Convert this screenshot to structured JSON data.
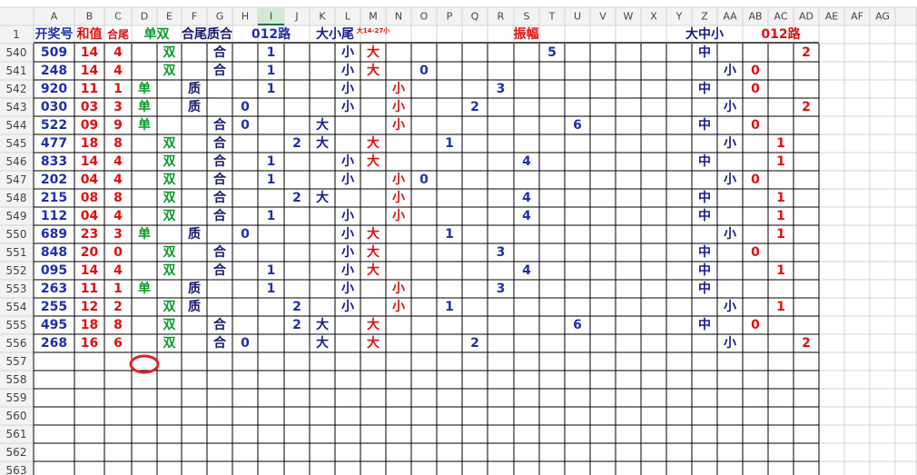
{
  "sheet": {
    "columns": [
      "A",
      "B",
      "C",
      "D",
      "E",
      "F",
      "G",
      "H",
      "I",
      "J",
      "K",
      "L",
      "M",
      "N",
      "O",
      "P",
      "Q",
      "R",
      "S",
      "T",
      "U",
      "V",
      "W",
      "X",
      "Y",
      "Z",
      "AA",
      "AB",
      "AC",
      "AD",
      "AE",
      "AF",
      "AG"
    ],
    "header_row": {
      "row": "1",
      "cells": {
        "A": "开奖号",
        "B": "和值",
        "C": "合尾",
        "D": "单双",
        "F": "合尾质合",
        "H": "012路",
        "K": "大小尾",
        "M": "大14-27小",
        "N": "振幅",
        "Y": "大中小",
        "AB": "012路"
      }
    },
    "rows": [
      {
        "row": "540",
        "cells": {
          "A": "509",
          "B": "14",
          "C": "4",
          "E": "双",
          "G": "合",
          "I": "1",
          "L": "小",
          "M": "大",
          "T": "5",
          "Z": "中",
          "AD": "2"
        }
      },
      {
        "row": "541",
        "cells": {
          "A": "248",
          "B": "14",
          "C": "4",
          "E": "双",
          "G": "合",
          "I": "1",
          "L": "小",
          "M": "大",
          "O": "0",
          "AA": "小",
          "AB": "0"
        }
      },
      {
        "row": "542",
        "cells": {
          "A": "920",
          "B": "11",
          "C": "1",
          "D": "单",
          "F": "质",
          "I": "1",
          "L": "小",
          "N": "小",
          "R": "3",
          "Z": "中",
          "AB": "0"
        }
      },
      {
        "row": "543",
        "cells": {
          "A": "030",
          "B": "03",
          "C": "3",
          "D": "单",
          "F": "质",
          "H": "0",
          "L": "小",
          "N": "小",
          "Q": "2",
          "AA": "小",
          "AD": "2"
        }
      },
      {
        "row": "544",
        "cells": {
          "A": "522",
          "B": "09",
          "C": "9",
          "D": "单",
          "G": "合",
          "H": "0",
          "K": "大",
          "N": "小",
          "U": "6",
          "Z": "中",
          "AB": "0"
        }
      },
      {
        "row": "545",
        "cells": {
          "A": "477",
          "B": "18",
          "C": "8",
          "E": "双",
          "G": "合",
          "J": "2",
          "K": "大",
          "M": "大",
          "P": "1",
          "AA": "小",
          "AC": "1"
        }
      },
      {
        "row": "546",
        "cells": {
          "A": "833",
          "B": "14",
          "C": "4",
          "E": "双",
          "G": "合",
          "I": "1",
          "L": "小",
          "M": "大",
          "S": "4",
          "Z": "中",
          "AC": "1"
        }
      },
      {
        "row": "547",
        "cells": {
          "A": "202",
          "B": "04",
          "C": "4",
          "E": "双",
          "G": "合",
          "I": "1",
          "L": "小",
          "N": "小",
          "O": "0",
          "AA": "小",
          "AB": "0"
        }
      },
      {
        "row": "548",
        "cells": {
          "A": "215",
          "B": "08",
          "C": "8",
          "E": "双",
          "G": "合",
          "J": "2",
          "K": "大",
          "N": "小",
          "S": "4",
          "Z": "中",
          "AC": "1"
        }
      },
      {
        "row": "549",
        "cells": {
          "A": "112",
          "B": "04",
          "C": "4",
          "E": "双",
          "G": "合",
          "I": "1",
          "L": "小",
          "N": "小",
          "S": "4",
          "Z": "中",
          "AC": "1"
        }
      },
      {
        "row": "550",
        "cells": {
          "A": "689",
          "B": "23",
          "C": "3",
          "D": "单",
          "F": "质",
          "H": "0",
          "L": "小",
          "M": "大",
          "P": "1",
          "AA": "小",
          "AC": "1"
        }
      },
      {
        "row": "551",
        "cells": {
          "A": "848",
          "B": "20",
          "C": "0",
          "E": "双",
          "G": "合",
          "L": "小",
          "M": "大",
          "R": "3",
          "Z": "中",
          "AB": "0"
        }
      },
      {
        "row": "552",
        "cells": {
          "A": "095",
          "B": "14",
          "C": "4",
          "E": "双",
          "G": "合",
          "I": "1",
          "L": "小",
          "M": "大",
          "S": "4",
          "Z": "中",
          "AC": "1"
        }
      },
      {
        "row": "553",
        "cells": {
          "A": "263",
          "B": "11",
          "C": "1",
          "D": "单",
          "F": "质",
          "I": "1",
          "L": "小",
          "N": "小",
          "R": "3",
          "Z": "中"
        }
      },
      {
        "row": "554",
        "cells": {
          "A": "255",
          "B": "12",
          "C": "2",
          "E": "双",
          "F": "质",
          "J": "2",
          "L": "小",
          "N": "小",
          "P": "1",
          "AA": "小",
          "AC": "1"
        }
      },
      {
        "row": "555",
        "cells": {
          "A": "495",
          "B": "18",
          "C": "8",
          "E": "双",
          "G": "合",
          "J": "2",
          "K": "大",
          "M": "大",
          "U": "6",
          "Z": "中",
          "AB": "0"
        }
      },
      {
        "row": "556",
        "cells": {
          "A": "268",
          "B": "16",
          "C": "6",
          "E": "双",
          "G": "合",
          "H": "0",
          "K": "大",
          "M": "大",
          "Q": "2",
          "AA": "小",
          "AD": "2"
        }
      },
      {
        "row": "557",
        "cells": {}
      },
      {
        "row": "558",
        "cells": {}
      },
      {
        "row": "559",
        "cells": {}
      },
      {
        "row": "560",
        "cells": {}
      },
      {
        "row": "561",
        "cells": {}
      },
      {
        "row": "562",
        "cells": {}
      },
      {
        "row": "563",
        "cells": {}
      }
    ]
  }
}
